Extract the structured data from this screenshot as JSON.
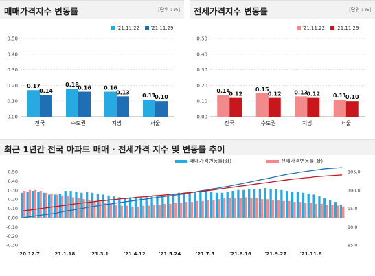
{
  "panels": {
    "sale": {
      "title": "매매가격지수 변동률",
      "unit": "[단위 : %]",
      "legend": [
        "'21.11.22",
        "'21.11.29"
      ],
      "colors": [
        "#29a9e1",
        "#1f6fb5"
      ]
    },
    "jeonse": {
      "title": "전세가격지수 변동률",
      "unit": "[단위 : %]",
      "legend": [
        "'21.11.22",
        "'21.11.29"
      ],
      "colors": [
        "#f28a8c",
        "#c8161d"
      ]
    },
    "trend": {
      "title": "최근 1년간 전국 아파트 매매 · 전세가격 지수 및 변동률 추이",
      "legend_sale": "매매가격변동률(좌)",
      "legend_jeonse": "전세가격변동률(좌)",
      "sale_color": "#29a9e1",
      "jeonse_color": "#f28a8c",
      "sale_line_color": "#1f6fb5",
      "jeonse_line_color": "#c8161d"
    }
  },
  "chart_data": [
    {
      "type": "bar",
      "title": "매매가격지수 변동률",
      "categories": [
        "전국",
        "수도권",
        "지방",
        "서울"
      ],
      "series": [
        {
          "name": "'21.11.22",
          "values": [
            0.17,
            0.18,
            0.16,
            0.11
          ]
        },
        {
          "name": "'21.11.29",
          "values": [
            0.14,
            0.16,
            0.13,
            0.1
          ]
        }
      ],
      "ylim": [
        0,
        0.5
      ],
      "yticks": [
        "0.00",
        "0.10",
        "0.20",
        "0.30",
        "0.40",
        "0.50"
      ],
      "value_labels": [
        [
          "0.17",
          "0.18",
          "0.16",
          "0.11"
        ],
        [
          "0.14",
          "0.16",
          "0.13",
          "0.10"
        ]
      ],
      "grid": true
    },
    {
      "type": "bar",
      "title": "전세가격지수 변동률",
      "categories": [
        "전국",
        "수도권",
        "지방",
        "서울"
      ],
      "series": [
        {
          "name": "'21.11.22",
          "values": [
            0.14,
            0.15,
            0.13,
            0.11
          ]
        },
        {
          "name": "'21.11.29",
          "values": [
            0.12,
            0.12,
            0.12,
            0.1
          ]
        }
      ],
      "ylim": [
        0,
        0.5
      ],
      "yticks": [
        "0.00",
        "0.10",
        "0.20",
        "0.30",
        "0.40",
        "0.50"
      ],
      "value_labels": [
        [
          "0.14",
          "0.15",
          "0.13",
          "0.11"
        ],
        [
          "0.12",
          "0.12",
          "0.12",
          "0.10"
        ]
      ],
      "grid": true
    },
    {
      "type": "bar",
      "title": "최근 1년간 전국 아파트 매매 · 전세가격 지수 및 변동률 추이",
      "x_tick_labels": [
        "'20.12.7",
        "'21.1.18",
        "'21.3.1",
        "'21.4.12",
        "'21.5.24",
        "'21.7.5",
        "'21.8.16",
        "'21.9.27",
        "'21.11.8"
      ],
      "left_axis": {
        "ylim": [
          -0.3,
          0.5
        ],
        "ticks": [
          "-0.30",
          "-0.20",
          "-0.10",
          "0.00",
          "0.10",
          "0.20",
          "0.30",
          "0.40",
          "0.50"
        ]
      },
      "right_axis": {
        "ylim": [
          85,
          105
        ],
        "ticks": [
          "85.0",
          "90.0",
          "95.0",
          "100.0",
          "105.0"
        ]
      },
      "series": [
        {
          "name": "매매가격변동률(좌)",
          "kind": "bar",
          "axis": "left",
          "values": [
            0.27,
            0.28,
            0.29,
            0.28,
            0.27,
            0.25,
            0.25,
            0.26,
            0.29,
            0.29,
            0.28,
            0.27,
            0.28,
            0.27,
            0.26,
            0.25,
            0.24,
            0.23,
            0.22,
            0.21,
            0.22,
            0.21,
            0.22,
            0.22,
            0.23,
            0.24,
            0.24,
            0.25,
            0.26,
            0.27,
            0.27,
            0.28,
            0.28,
            0.29,
            0.29,
            0.28,
            0.27,
            0.27,
            0.28,
            0.29,
            0.3,
            0.3,
            0.31,
            0.31,
            0.31,
            0.32,
            0.31,
            0.31,
            0.3,
            0.29,
            0.28,
            0.28,
            0.27,
            0.26,
            0.25,
            0.23,
            0.21,
            0.19,
            0.17,
            0.14
          ]
        },
        {
          "name": "전세가격변동률(좌)",
          "kind": "bar",
          "axis": "left",
          "values": [
            0.29,
            0.3,
            0.3,
            0.29,
            0.27,
            0.26,
            0.25,
            0.24,
            0.23,
            0.22,
            0.21,
            0.2,
            0.19,
            0.18,
            0.17,
            0.16,
            0.15,
            0.14,
            0.13,
            0.13,
            0.12,
            0.12,
            0.13,
            0.13,
            0.14,
            0.14,
            0.15,
            0.15,
            0.16,
            0.16,
            0.17,
            0.17,
            0.18,
            0.18,
            0.19,
            0.19,
            0.2,
            0.21,
            0.21,
            0.21,
            0.21,
            0.22,
            0.21,
            0.21,
            0.2,
            0.2,
            0.19,
            0.19,
            0.18,
            0.18,
            0.17,
            0.17,
            0.16,
            0.16,
            0.15,
            0.15,
            0.14,
            0.14,
            0.13,
            0.12
          ]
        },
        {
          "name": "",
          "kind": "line",
          "axis": "right",
          "role": "매매가격지수",
          "values": [
            92.5,
            92.7,
            92.9,
            93.1,
            93.3,
            93.5,
            93.7,
            94.0,
            94.3,
            94.5,
            94.8,
            95.0,
            95.3,
            95.5,
            95.8,
            96.0,
            96.2,
            96.4,
            96.6,
            96.8,
            97.0,
            97.2,
            97.4,
            97.6,
            97.8,
            98.0,
            98.2,
            98.4,
            98.6,
            98.8,
            99.0,
            99.3,
            99.5,
            99.8,
            100.0,
            100.3,
            100.5,
            100.8,
            101.0,
            101.3,
            101.6,
            101.9,
            102.2,
            102.5,
            102.8,
            103.1,
            103.4,
            103.7,
            104.0,
            104.3,
            104.5,
            104.8,
            105.0,
            105.2,
            105.4,
            105.6,
            105.8,
            105.9,
            106.0,
            106.1
          ]
        },
        {
          "name": "",
          "kind": "line",
          "axis": "right",
          "role": "전세가격지수",
          "values": [
            94.3,
            94.5,
            94.7,
            94.9,
            95.1,
            95.3,
            95.5,
            95.7,
            95.9,
            96.1,
            96.3,
            96.5,
            96.6,
            96.8,
            97.0,
            97.1,
            97.3,
            97.4,
            97.6,
            97.7,
            97.8,
            98.0,
            98.1,
            98.2,
            98.4,
            98.5,
            98.6,
            98.8,
            98.9,
            99.0,
            99.2,
            99.3,
            99.5,
            99.6,
            99.8,
            100.0,
            100.2,
            100.4,
            100.6,
            100.8,
            101.0,
            101.2,
            101.4,
            101.6,
            101.8,
            102.0,
            102.2,
            102.4,
            102.6,
            102.8,
            103.0,
            103.1,
            103.3,
            103.4,
            103.6,
            103.7,
            103.8,
            103.9,
            104.0,
            104.1
          ]
        }
      ],
      "grid": false
    }
  ]
}
